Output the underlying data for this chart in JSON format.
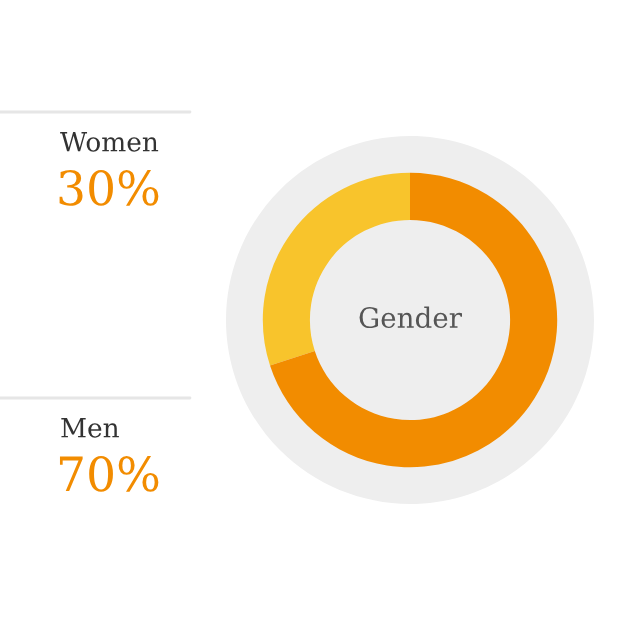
{
  "chart_data": {
    "type": "donut",
    "title": "Gender",
    "categories": [
      "Women",
      "Men"
    ],
    "values": [
      30,
      70
    ],
    "colors": [
      "#f8c42c",
      "#f28c00"
    ],
    "value_labels": [
      "30%",
      "70%"
    ]
  }
}
